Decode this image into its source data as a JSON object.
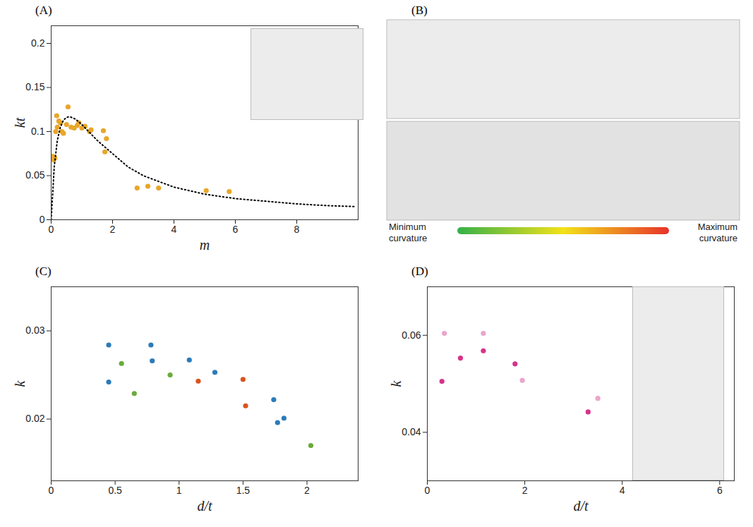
{
  "chart_data": [
    {
      "type": "scatter",
      "title": "(A)",
      "x_label": "m",
      "y_label": "kt",
      "xlim": [
        0,
        10
      ],
      "xticks": [
        0,
        2,
        4,
        6,
        8
      ],
      "ylim": [
        0,
        0.22
      ],
      "yticks": [
        0,
        0.05,
        0.1,
        0.15,
        0.2
      ],
      "grid": false,
      "series": [
        {
          "type": "scatter",
          "color": "#e8a62a",
          "marker": "circle",
          "x": [
            0.05,
            0.08,
            0.12,
            0.15,
            0.18,
            0.2,
            0.25,
            0.3,
            0.35,
            0.4,
            0.5,
            0.55,
            0.65,
            0.75,
            0.85,
            0.9,
            1.0,
            1.1,
            1.25,
            1.3,
            1.7,
            1.8,
            1.75,
            2.8,
            3.15,
            3.5,
            5.05,
            5.8
          ],
          "values": [
            0.072,
            0.068,
            0.07,
            0.1,
            0.118,
            0.105,
            0.112,
            0.11,
            0.1,
            0.098,
            0.108,
            0.128,
            0.105,
            0.104,
            0.107,
            0.11,
            0.104,
            0.106,
            0.1,
            0.102,
            0.101,
            0.092,
            0.077,
            0.036,
            0.038,
            0.036,
            0.033,
            0.032
          ]
        },
        {
          "type": "line",
          "color": "#000000",
          "line_style": "dotted",
          "x": [
            0,
            0.1,
            0.2,
            0.3,
            0.4,
            0.5,
            0.6,
            0.8,
            1,
            1.5,
            2,
            2.5,
            3,
            4,
            5,
            6,
            7,
            8,
            9,
            9.9
          ],
          "values": [
            0,
            0.06,
            0.09,
            0.105,
            0.113,
            0.116,
            0.117,
            0.114,
            0.108,
            0.09,
            0.075,
            0.06,
            0.05,
            0.037,
            0.029,
            0.024,
            0.021,
            0.018,
            0.016,
            0.015
          ]
        }
      ]
    },
    {
      "type": "colorbar",
      "title": "(B)",
      "labels": [
        "Minimum curvature",
        "Maximum curvature"
      ],
      "colors": [
        "#35b04a",
        "#f2e21a",
        "#e8322a"
      ]
    },
    {
      "type": "scatter",
      "title": "(C)",
      "x_label": "d/t",
      "y_label": "k",
      "xlim": [
        0,
        2.4
      ],
      "xticks": [
        0,
        0.5,
        1,
        1.5,
        2
      ],
      "ylim": [
        0.013,
        0.035
      ],
      "yticks": [
        0.02,
        0.03
      ],
      "grid": false,
      "series": [
        {
          "type": "scatter",
          "color": "#2b7bba",
          "marker": "circle",
          "x": [
            0.45,
            0.45,
            0.78,
            0.79,
            1.08,
            1.28,
            1.74,
            1.77,
            1.82
          ],
          "values": [
            0.0284,
            0.0242,
            0.0284,
            0.0266,
            0.0267,
            0.0253,
            0.0222,
            0.0196,
            0.0201
          ]
        },
        {
          "type": "scatter",
          "color": "#6aaa3a",
          "marker": "circle",
          "x": [
            0.55,
            0.65,
            0.93,
            2.03
          ],
          "values": [
            0.0263,
            0.0229,
            0.025,
            0.017
          ]
        },
        {
          "type": "scatter",
          "color": "#d9541e",
          "marker": "circle",
          "x": [
            1.15,
            1.5,
            1.52
          ],
          "values": [
            0.0243,
            0.0245,
            0.0215
          ]
        }
      ]
    },
    {
      "type": "scatter",
      "title": "(D)",
      "x_label": "d/t",
      "y_label": "k",
      "xlim": [
        0,
        6.3
      ],
      "xticks": [
        0,
        2,
        4,
        6
      ],
      "ylim": [
        0.03,
        0.07
      ],
      "yticks": [
        0.04,
        0.06
      ],
      "grid": false,
      "series": [
        {
          "type": "scatter",
          "color": "#d6338a",
          "marker": "circle",
          "x": [
            0.3,
            0.68,
            1.15,
            1.8,
            3.3
          ],
          "values": [
            0.0505,
            0.0553,
            0.0568,
            0.0541,
            0.0442
          ]
        },
        {
          "type": "scatter",
          "color": "#eaa6cb",
          "marker": "circle",
          "x": [
            0.35,
            1.15,
            1.95,
            3.5
          ],
          "values": [
            0.0604,
            0.0604,
            0.0507,
            0.047
          ]
        }
      ]
    }
  ]
}
